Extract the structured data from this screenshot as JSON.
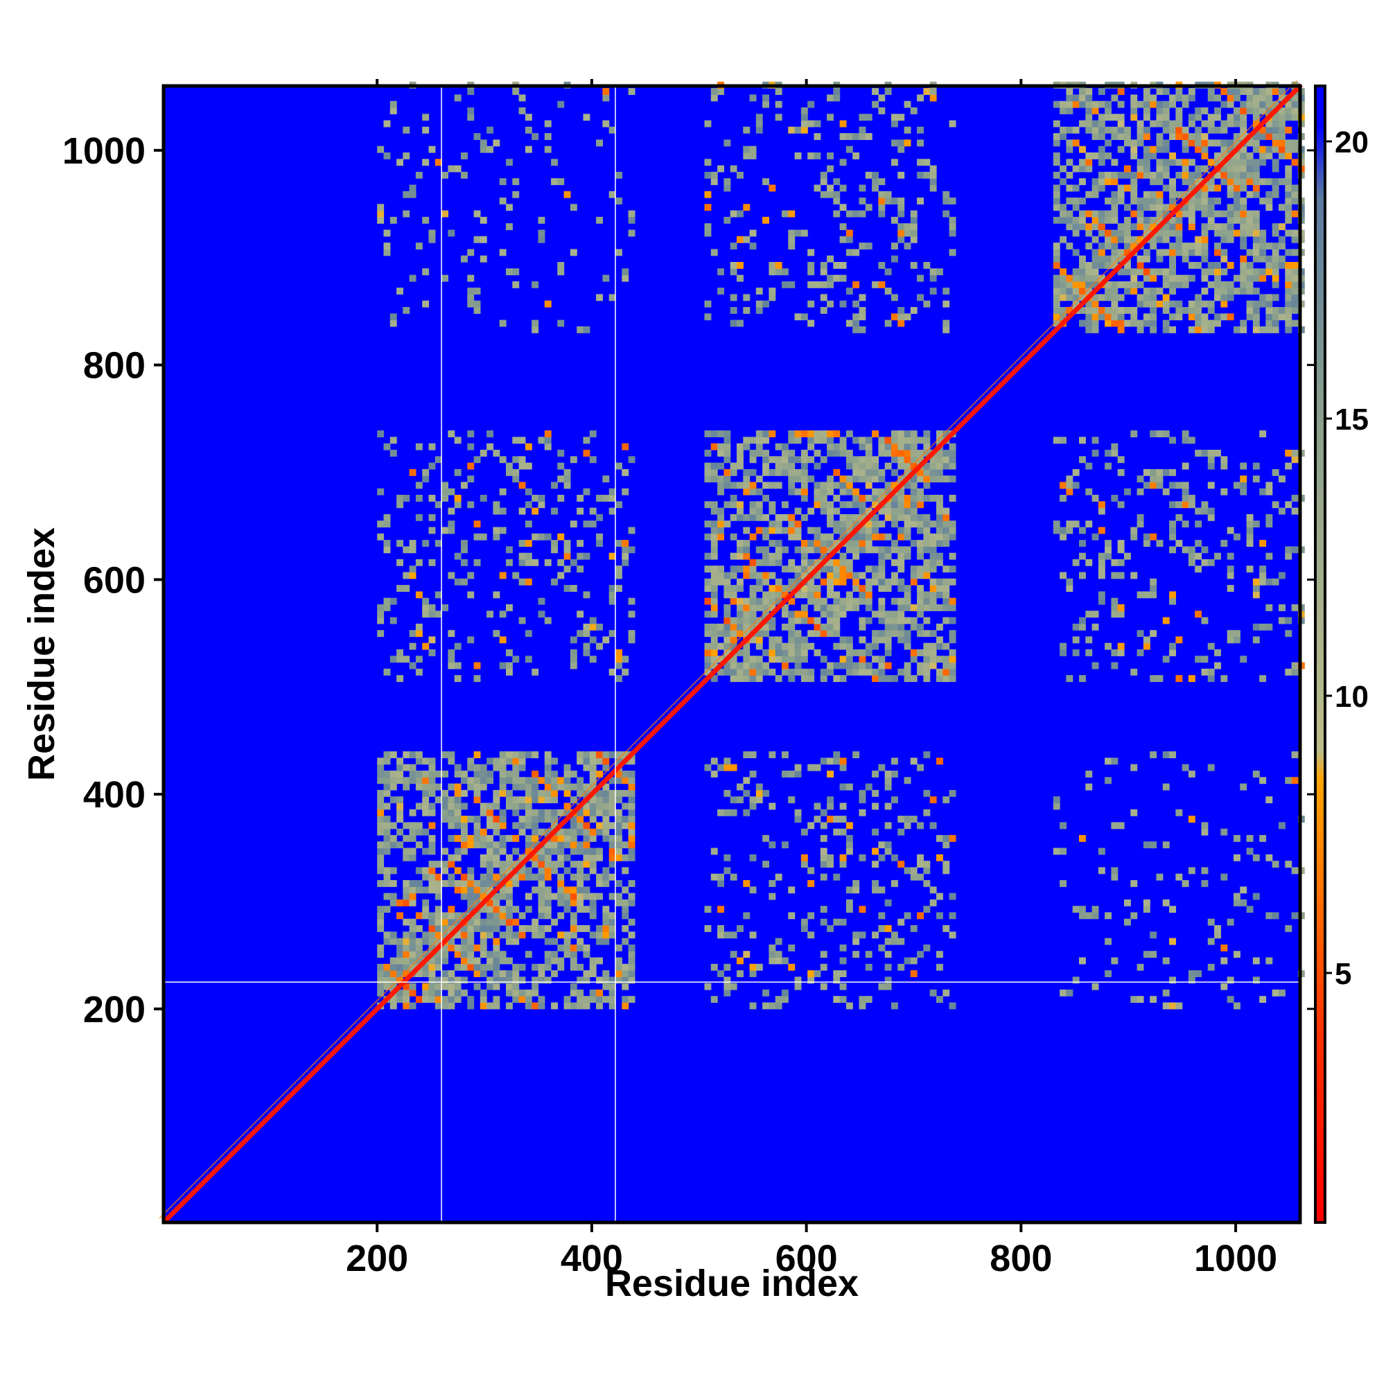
{
  "chart_data": {
    "type": "heatmap",
    "title": "",
    "xlabel": "Residue index",
    "ylabel": "Residue index",
    "xlim": [
      1,
      1060
    ],
    "ylim": [
      1,
      1060
    ],
    "x_ticks": [
      200,
      400,
      600,
      800,
      1000
    ],
    "y_ticks": [
      200,
      400,
      600,
      800,
      1000
    ],
    "x_tick_labels": [
      "200",
      "400",
      "600",
      "800",
      "1000"
    ],
    "y_tick_labels": [
      "200",
      "400",
      "600",
      "800",
      "1000"
    ],
    "colorbar": {
      "range": [
        0.5,
        21
      ],
      "ticks": [
        5,
        10,
        15,
        20
      ],
      "tick_labels": [
        "5",
        "10",
        "15",
        "20"
      ],
      "stops": [
        {
          "value": 0.5,
          "color": "#ff0000"
        },
        {
          "value": 4,
          "color": "#ff3300"
        },
        {
          "value": 8.5,
          "color": "#ffa500"
        },
        {
          "value": 9,
          "color": "#bdbd8a"
        },
        {
          "value": 15,
          "color": "#8aa08c"
        },
        {
          "value": 19,
          "color": "#5a7aa0"
        },
        {
          "value": 20.3,
          "color": "#0000ff"
        }
      ]
    },
    "background_value": 21,
    "diagonal_value": 2,
    "domains": [
      {
        "start": 200,
        "end": 435
      },
      {
        "start": 505,
        "end": 735
      },
      {
        "start": 830,
        "end": 1060
      }
    ],
    "inter_domain_contacts": [
      {
        "domains": [
          0,
          1
        ],
        "level": "moderate"
      },
      {
        "domains": [
          0,
          2
        ],
        "level": "weak"
      },
      {
        "domains": [
          1,
          2
        ],
        "level": "moderate"
      }
    ],
    "reference_lines": {
      "vertical": [
        260,
        422
      ],
      "horizontal": [
        225
      ],
      "color": "#ffffff"
    },
    "grid": false,
    "legend": "colorbar right"
  }
}
